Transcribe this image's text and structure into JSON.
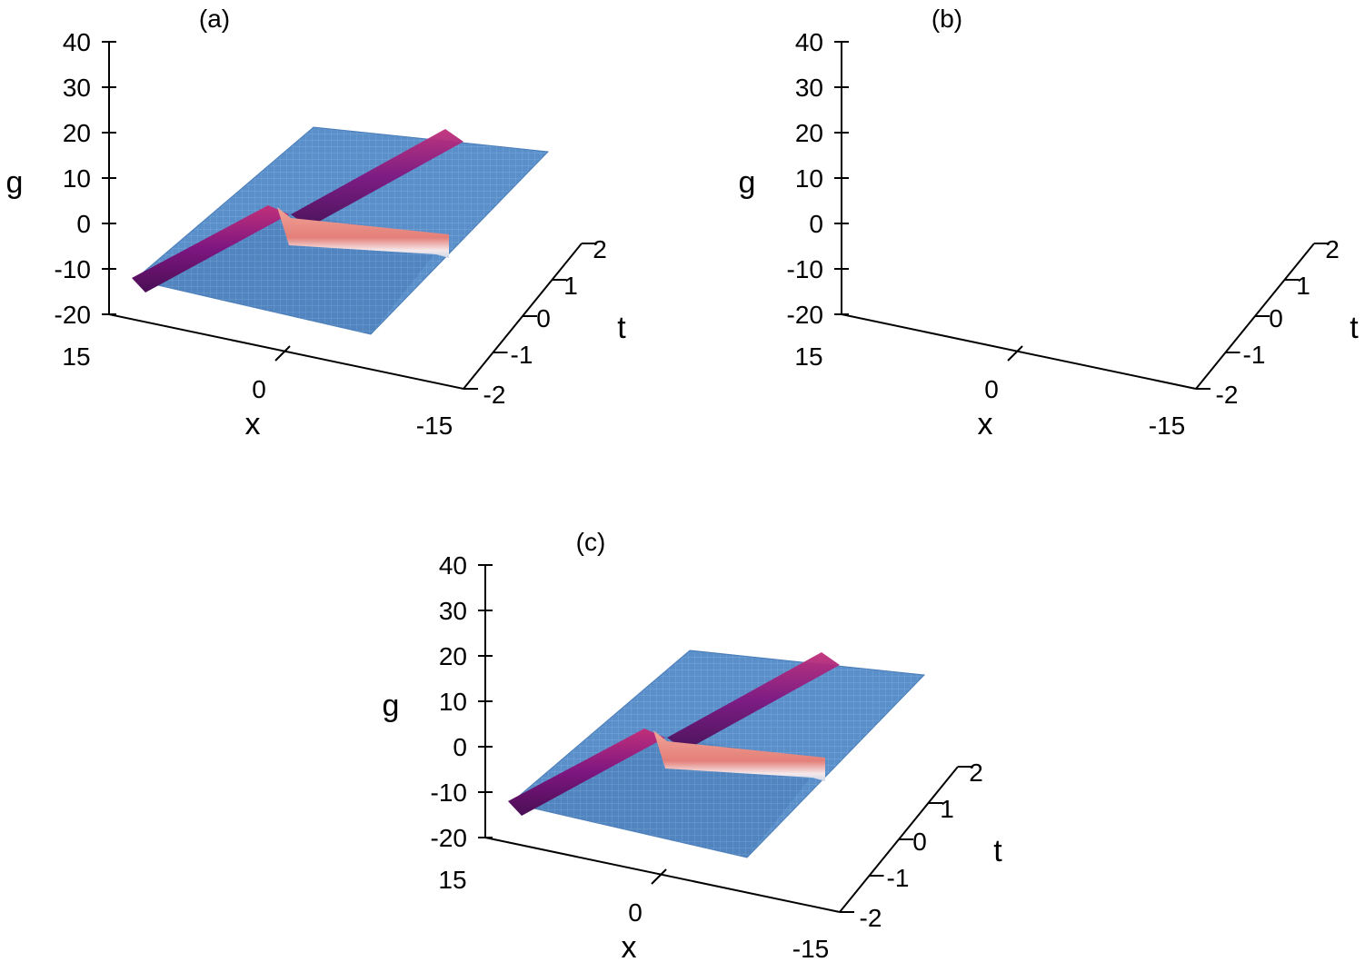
{
  "chart_data": [
    {
      "type": "surface3d",
      "panel_label": "(a)",
      "zlabel": "g",
      "xlabel": "x",
      "ylabel": "t",
      "z_ticks": [
        "40",
        "30",
        "20",
        "10",
        "0",
        "-10",
        "-20"
      ],
      "x_ticks": [
        "15",
        "0",
        "-15"
      ],
      "t_ticks": [
        "2",
        "1",
        "0",
        "-1",
        "-2"
      ],
      "zlim": [
        -20,
        40
      ],
      "xlim": [
        -15,
        15
      ],
      "tlim": [
        -2,
        2
      ],
      "surface_color": "#5a8fc9",
      "soliton_color": "#8a1a8a",
      "ridge_color": "#e88a80"
    },
    {
      "type": "surface3d",
      "panel_label": "(b)",
      "zlabel": "g",
      "xlabel": "x",
      "ylabel": "t",
      "z_ticks": [
        "40",
        "30",
        "20",
        "10",
        "0",
        "-10",
        "-20"
      ],
      "x_ticks": [
        "15",
        "0",
        "-15"
      ],
      "t_ticks": [
        "2",
        "1",
        "0",
        "-1",
        "-2"
      ],
      "zlim": [
        -20,
        40
      ],
      "xlim": [
        -15,
        15
      ],
      "tlim": [
        -2,
        2
      ],
      "surface_color": "#5a8fc9",
      "soliton_color": "#8a1a8a",
      "ridge_color": "#e88a80"
    },
    {
      "type": "surface3d",
      "panel_label": "(c)",
      "zlabel": "g",
      "xlabel": "x",
      "ylabel": "t",
      "z_ticks": [
        "40",
        "30",
        "20",
        "10",
        "0",
        "-10",
        "-20"
      ],
      "x_ticks": [
        "15",
        "0",
        "-15"
      ],
      "t_ticks": [
        "2",
        "1",
        "0",
        "-1",
        "-2"
      ],
      "zlim": [
        -20,
        40
      ],
      "xlim": [
        -15,
        15
      ],
      "tlim": [
        -2,
        2
      ],
      "surface_color": "#5a8fc9",
      "soliton_color": "#8a1a8a",
      "ridge_color": "#e88a80"
    }
  ]
}
